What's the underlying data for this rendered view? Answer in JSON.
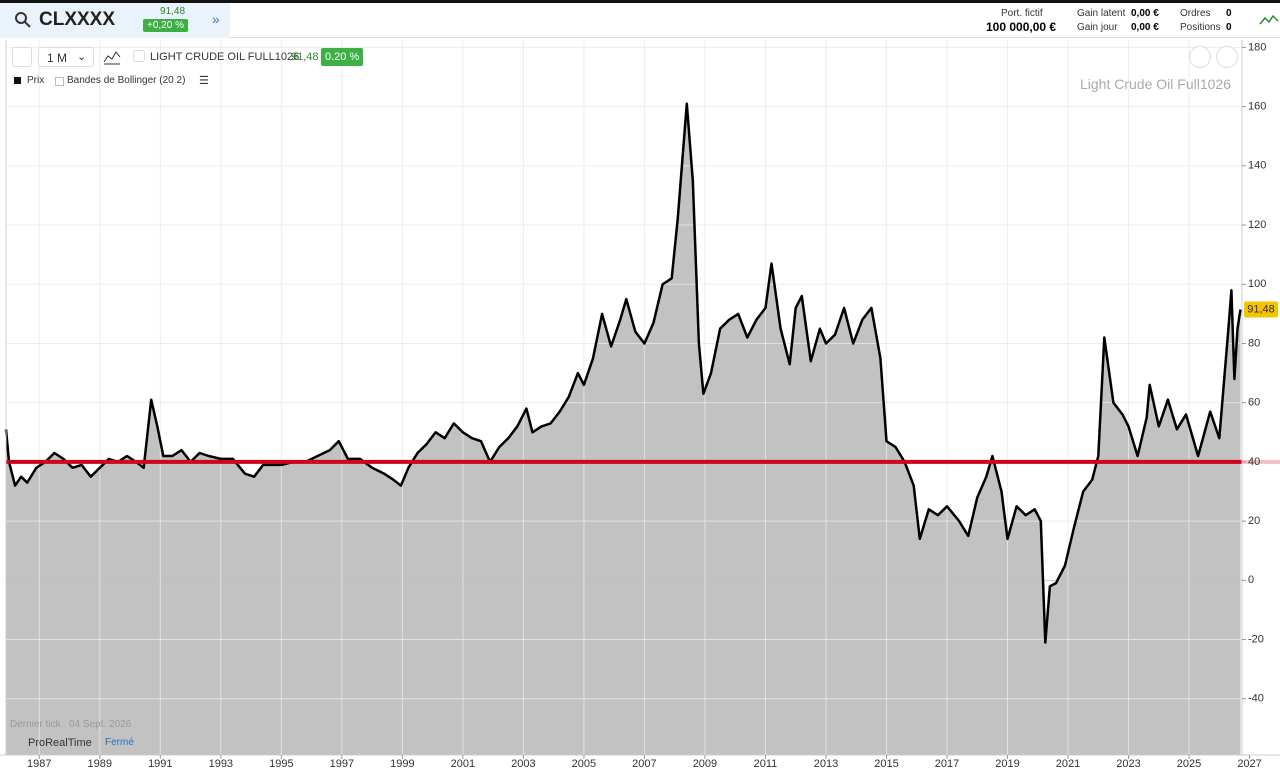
{
  "header": {
    "symbol": "CLXXXX",
    "price": "91,48",
    "change": "+0,20 %",
    "portfolio_label": "Port. fictif",
    "portfolio_value": "100 000,00 €",
    "gain_latent_label": "Gain latent",
    "gain_latent": "0,00 €",
    "gain_jour_label": "Gain jour",
    "gain_jour": "0,00 €",
    "orders_label": "Ordres",
    "orders": "0",
    "positions_label": "Positions",
    "positions": "0"
  },
  "toolbar": {
    "period": "1 M",
    "instrument": "LIGHT CRUDE OIL FULL1026",
    "price": "91,48",
    "change": "0.20 %",
    "legend_bollinger": "Bandes de Bollinger (20 2)"
  },
  "footer": {
    "last_tick_label": "Dernier tick",
    "last_tick_date": "04 Sept. 2026",
    "brand": "ProRealTime",
    "status": "Fermé"
  },
  "chart_data": {
    "type": "area",
    "title": "Light Crude Oil Full1026",
    "x": [
      1985.9,
      1986.0,
      1986.2,
      1986.4,
      1986.6,
      1986.9,
      1987.2,
      1987.5,
      1987.8,
      1988.1,
      1988.4,
      1988.7,
      1989.0,
      1989.3,
      1989.6,
      1989.9,
      1990.2,
      1990.45,
      1990.7,
      1990.9,
      1991.1,
      1991.4,
      1991.7,
      1992.0,
      1992.3,
      1992.6,
      1993.0,
      1993.4,
      1993.8,
      1994.1,
      1994.4,
      1994.7,
      1995.0,
      1995.4,
      1995.8,
      1996.2,
      1996.6,
      1996.9,
      1997.2,
      1997.6,
      1998.0,
      1998.4,
      1998.7,
      1998.95,
      1999.2,
      1999.5,
      1999.8,
      2000.1,
      2000.4,
      2000.7,
      2001.0,
      2001.3,
      2001.6,
      2001.9,
      2002.2,
      2002.5,
      2002.8,
      2003.1,
      2003.3,
      2003.6,
      2003.9,
      2004.2,
      2004.5,
      2004.8,
      2005.0,
      2005.3,
      2005.6,
      2005.9,
      2006.2,
      2006.4,
      2006.7,
      2007.0,
      2007.3,
      2007.6,
      2007.9,
      2008.1,
      2008.4,
      2008.6,
      2008.8,
      2008.95,
      2009.2,
      2009.5,
      2009.8,
      2010.1,
      2010.4,
      2010.7,
      2011.0,
      2011.2,
      2011.5,
      2011.8,
      2012.0,
      2012.2,
      2012.5,
      2012.8,
      2013.0,
      2013.3,
      2013.6,
      2013.9,
      2014.2,
      2014.5,
      2014.8,
      2015.0,
      2015.3,
      2015.6,
      2015.9,
      2016.1,
      2016.4,
      2016.7,
      2017.0,
      2017.4,
      2017.7,
      2018.0,
      2018.3,
      2018.5,
      2018.8,
      2019.0,
      2019.3,
      2019.6,
      2019.9,
      2020.1,
      2020.25,
      2020.4,
      2020.6,
      2020.9,
      2021.2,
      2021.5,
      2021.8,
      2022.0,
      2022.2,
      2022.5,
      2022.8,
      2023.0,
      2023.3,
      2023.6,
      2023.7,
      2024.0,
      2024.3,
      2024.6,
      2024.9,
      2025.3,
      2025.7,
      2026.0,
      2026.3,
      2026.4,
      2026.5,
      2026.6,
      2026.7
    ],
    "series": [
      {
        "name": "Prix",
        "color": "#000000",
        "fill": "#c2c2c2",
        "values": [
          51,
          40,
          32,
          35,
          33,
          38,
          40,
          43,
          41,
          38,
          39,
          35,
          38,
          41,
          40,
          42,
          40,
          38,
          61,
          52,
          42,
          42,
          44,
          40,
          43,
          42,
          41,
          41,
          36,
          35,
          39,
          39,
          39,
          40,
          40,
          42,
          44,
          47,
          41,
          41,
          38,
          36,
          34,
          32,
          38,
          43,
          46,
          50,
          48,
          53,
          50,
          48,
          47,
          40,
          45,
          48,
          52,
          58,
          50,
          52,
          53,
          57,
          62,
          70,
          66,
          75,
          90,
          79,
          88,
          95,
          84,
          80,
          87,
          100,
          102,
          122,
          161,
          135,
          80,
          63,
          70,
          85,
          88,
          90,
          82,
          88,
          92,
          107,
          85,
          73,
          92,
          96,
          74,
          85,
          80,
          83,
          92,
          80,
          88,
          92,
          75,
          47,
          45,
          40,
          32,
          14,
          24,
          22,
          25,
          20,
          15,
          28,
          35,
          42,
          30,
          14,
          25,
          22,
          24,
          20,
          -21,
          -2,
          -1,
          5,
          18,
          30,
          34,
          42,
          82,
          60,
          56,
          52,
          42,
          55,
          66,
          52,
          61,
          51,
          56,
          42,
          57,
          48,
          85,
          98,
          68,
          85,
          91.48
        ]
      }
    ],
    "xlim": [
      1985.9,
      2026.75
    ],
    "ylim": [
      -59,
      182.5
    ],
    "xticks": [
      1987,
      1989,
      1991,
      1993,
      1995,
      1997,
      1999,
      2001,
      2003,
      2005,
      2007,
      2009,
      2011,
      2013,
      2015,
      2017,
      2019,
      2021,
      2023,
      2025,
      2027
    ],
    "yticks": [
      -40,
      -20,
      0,
      20,
      40,
      60,
      80,
      100,
      120,
      140,
      160,
      180
    ],
    "grid": true,
    "hline": {
      "value": 40,
      "color": "#d0021b"
    },
    "last_value_label": {
      "value": 91.48,
      "label": "91,48",
      "color": "#f5c400"
    }
  }
}
